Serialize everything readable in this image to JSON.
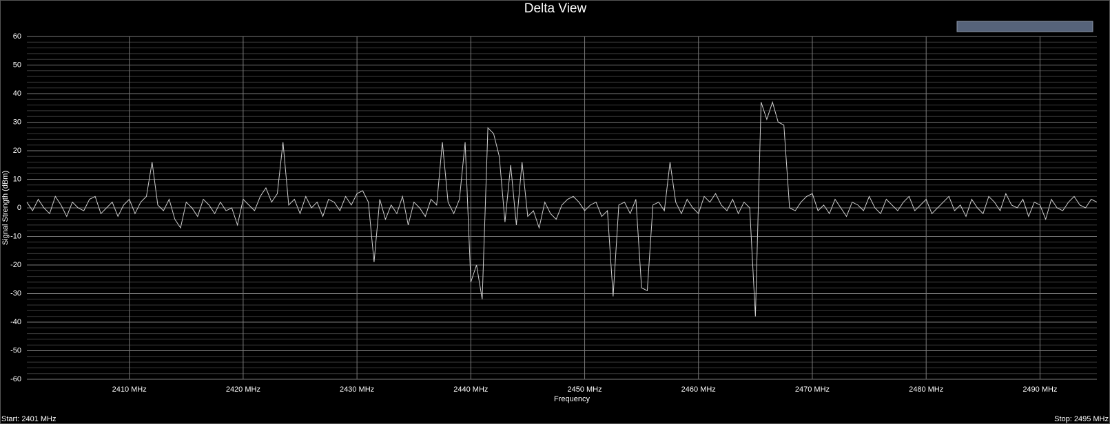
{
  "chart_data": {
    "type": "line",
    "title": "Delta View",
    "xlabel": "Frequency",
    "ylabel": "Signal Strength (dBm)",
    "start_label": "Start: 2401 MHz",
    "stop_label": "Stop: 2495 MHz",
    "xlim": [
      2401,
      2495
    ],
    "ylim": [
      -60,
      60
    ],
    "xticks": [
      {
        "value": 2410,
        "label": "2410 MHz"
      },
      {
        "value": 2420,
        "label": "2420 MHz"
      },
      {
        "value": 2430,
        "label": "2430 MHz"
      },
      {
        "value": 2440,
        "label": "2440 MHz"
      },
      {
        "value": 2450,
        "label": "2450 MHz"
      },
      {
        "value": 2460,
        "label": "2460 MHz"
      },
      {
        "value": 2470,
        "label": "2470 MHz"
      },
      {
        "value": 2480,
        "label": "2480 MHz"
      },
      {
        "value": 2490,
        "label": "2490 MHz"
      }
    ],
    "yticks": [
      -60,
      -50,
      -40,
      -30,
      -20,
      -10,
      0,
      10,
      20,
      30,
      40,
      50,
      60
    ],
    "yminorticks": [
      -58,
      -56,
      -54,
      -52,
      -48,
      -46,
      -44,
      -42,
      -38,
      -36,
      -34,
      -32,
      -28,
      -26,
      -24,
      -22,
      -18,
      -16,
      -14,
      -12,
      -8,
      -6,
      -4,
      -2,
      2,
      4,
      6,
      8,
      12,
      14,
      16,
      18,
      22,
      24,
      26,
      28,
      32,
      34,
      36,
      38,
      42,
      44,
      46,
      48,
      52,
      54,
      56,
      58
    ],
    "grid": true,
    "x": [
      2401,
      2401.5,
      2402,
      2402.5,
      2403,
      2403.5,
      2404,
      2404.5,
      2405,
      2405.5,
      2406,
      2406.5,
      2407,
      2407.5,
      2408,
      2408.5,
      2409,
      2409.5,
      2410,
      2410.5,
      2411,
      2411.5,
      2412,
      2412.5,
      2413,
      2413.5,
      2414,
      2414.5,
      2415,
      2415.5,
      2416,
      2416.5,
      2417,
      2417.5,
      2418,
      2418.5,
      2419,
      2419.5,
      2420,
      2420.5,
      2421,
      2421.5,
      2422,
      2422.5,
      2423,
      2423.5,
      2424,
      2424.5,
      2425,
      2425.5,
      2426,
      2426.5,
      2427,
      2427.5,
      2428,
      2428.5,
      2429,
      2429.5,
      2430,
      2430.5,
      2431,
      2431.5,
      2432,
      2432.5,
      2433,
      2433.5,
      2434,
      2434.5,
      2435,
      2435.5,
      2436,
      2436.5,
      2437,
      2437.5,
      2438,
      2438.5,
      2439,
      2439.5,
      2440,
      2440.5,
      2441,
      2441.5,
      2442,
      2442.5,
      2443,
      2443.5,
      2444,
      2444.5,
      2445,
      2445.5,
      2446,
      2446.5,
      2447,
      2447.5,
      2448,
      2448.5,
      2449,
      2449.5,
      2450,
      2450.5,
      2451,
      2451.5,
      2452,
      2452.5,
      2453,
      2453.5,
      2454,
      2454.5,
      2455,
      2455.5,
      2456,
      2456.5,
      2457,
      2457.5,
      2458,
      2458.5,
      2459,
      2459.5,
      2460,
      2460.5,
      2461,
      2461.5,
      2462,
      2462.5,
      2463,
      2463.5,
      2464,
      2464.5,
      2465,
      2465.5,
      2466,
      2466.5,
      2467,
      2467.5,
      2468,
      2468.5,
      2469,
      2469.5,
      2470,
      2470.5,
      2471,
      2471.5,
      2472,
      2472.5,
      2473,
      2473.5,
      2474,
      2474.5,
      2475,
      2475.5,
      2476,
      2476.5,
      2477,
      2477.5,
      2478,
      2478.5,
      2479,
      2479.5,
      2480,
      2480.5,
      2481,
      2481.5,
      2482,
      2482.5,
      2483,
      2483.5,
      2484,
      2484.5,
      2485,
      2485.5,
      2486,
      2486.5,
      2487,
      2487.5,
      2488,
      2488.5,
      2489,
      2489.5,
      2490,
      2490.5,
      2491,
      2491.5,
      2492,
      2492.5,
      2493,
      2493.5,
      2494,
      2494.5,
      2495
    ],
    "series": [
      {
        "color": "#cfcfcf",
        "values": [
          2,
          -1,
          3,
          0,
          -2,
          4,
          1,
          -3,
          2,
          0,
          -1,
          3,
          4,
          -2,
          0,
          2,
          -3,
          1,
          3,
          -2,
          2,
          4,
          16,
          1,
          -1,
          3,
          -4,
          -7,
          2,
          0,
          -3,
          3,
          1,
          -2,
          2,
          -1,
          0,
          -6,
          3,
          1,
          -1,
          4,
          7,
          2,
          5,
          23,
          1,
          3,
          -2,
          4,
          0,
          2,
          -3,
          3,
          2,
          -1,
          4,
          1,
          5,
          6,
          2,
          -19,
          3,
          -4,
          1,
          -2,
          4,
          -6,
          2,
          0,
          -3,
          3,
          1,
          23,
          2,
          -2,
          3,
          23,
          -26,
          -20,
          -32,
          28,
          26,
          18,
          -5,
          15,
          -6,
          16,
          -3,
          -1,
          -7,
          2,
          -2,
          -4,
          1,
          3,
          4,
          2,
          -1,
          1,
          2,
          -3,
          -1,
          -31,
          1,
          2,
          -2,
          3,
          -28,
          -29,
          1,
          2,
          -1,
          16,
          2,
          -2,
          3,
          0,
          -2,
          4,
          2,
          5,
          1,
          -1,
          3,
          -2,
          2,
          0,
          -38,
          37,
          31,
          37,
          30,
          29,
          0,
          -1,
          2,
          4,
          5,
          -1,
          1,
          -2,
          3,
          0,
          -3,
          2,
          1,
          -1,
          4,
          0,
          -2,
          3,
          1,
          -1,
          2,
          4,
          -1,
          1,
          3,
          -2,
          0,
          2,
          4,
          -1,
          1,
          -3,
          3,
          0,
          -2,
          4,
          2,
          -1,
          5,
          1,
          0,
          3,
          -3,
          2,
          1,
          -4,
          3,
          0,
          -1,
          2,
          4,
          1,
          0,
          3,
          2
        ]
      }
    ]
  }
}
